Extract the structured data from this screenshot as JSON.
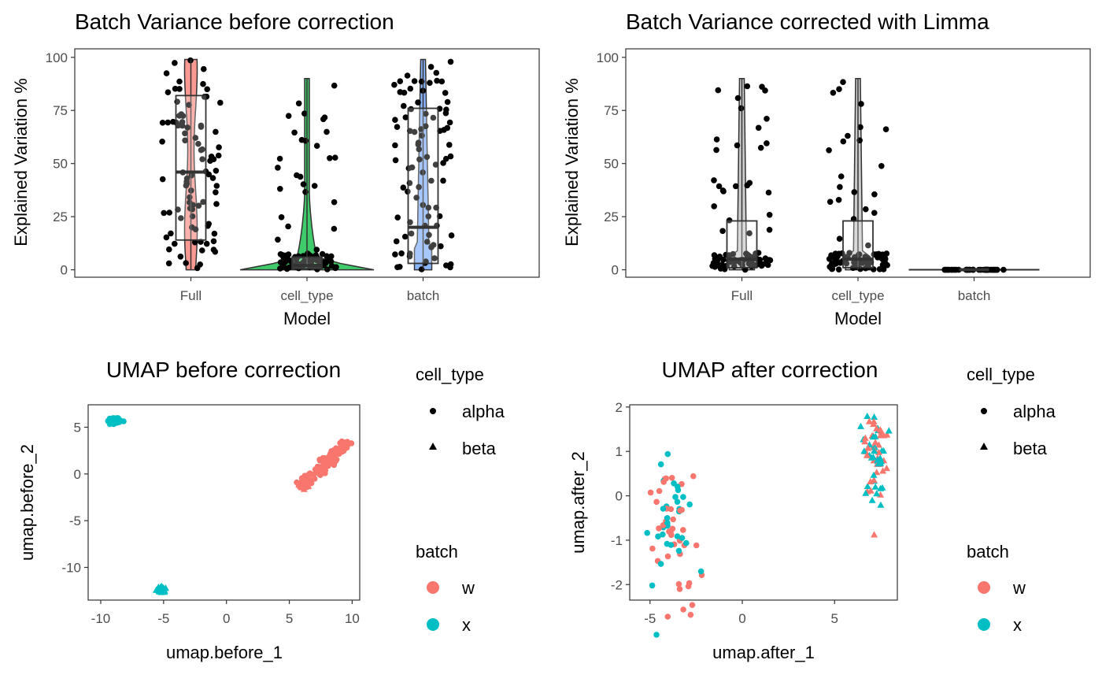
{
  "chart_data": [
    {
      "type": "violin-box-jitter",
      "title": "Batch Variance before correction",
      "xlabel": "Model",
      "ylabel": "Explained Variation %",
      "categories": [
        "Full",
        "cell_type",
        "batch"
      ],
      "ylim": [
        -3.5,
        104
      ],
      "yticks": [
        0,
        25,
        50,
        75,
        100
      ],
      "colors": [
        "#f8766d",
        "#00ba38",
        "#619cff"
      ],
      "box": [
        {
          "q1": 14,
          "median": 46,
          "q3": 82,
          "whisker_low": 0,
          "whisker_high": 99
        },
        {
          "q1": 0.5,
          "median": 2,
          "q3": 6,
          "whisker_low": 0,
          "whisker_high": 90
        },
        {
          "q1": 3,
          "median": 20,
          "q3": 76,
          "whisker_low": 0,
          "whisker_high": 99
        }
      ]
    },
    {
      "type": "violin-box-jitter",
      "title": "Batch Variance corrected with Limma",
      "xlabel": "Model",
      "ylabel": "Explained Variation %",
      "categories": [
        "Full",
        "cell_type",
        "batch"
      ],
      "ylim": [
        -3.5,
        104
      ],
      "yticks": [
        0,
        25,
        50,
        75,
        100
      ],
      "box": [
        {
          "q1": 1,
          "median": 5,
          "q3": 23,
          "whisker_low": 0,
          "whisker_high": 90
        },
        {
          "q1": 1,
          "median": 5,
          "q3": 23,
          "whisker_low": 0,
          "whisker_high": 90
        },
        {
          "q1": 0,
          "median": 0,
          "q3": 0,
          "whisker_low": 0,
          "whisker_high": 0
        }
      ]
    },
    {
      "type": "scatter",
      "title": "UMAP before correction",
      "xlabel": "umap.before_1",
      "ylabel": "umap.before_2",
      "xlim": [
        -11,
        10.6
      ],
      "ylim": [
        -13.5,
        7.4
      ],
      "xticks": [
        -10,
        -5,
        0,
        5,
        10
      ],
      "yticks": [
        -10,
        -5,
        0,
        5
      ],
      "clusters": [
        {
          "batch": "x",
          "cell_type": "alpha",
          "center": [
            -9.0,
            5.7
          ],
          "spread": [
            0.5,
            0.35
          ]
        },
        {
          "batch": "x",
          "cell_type": "beta",
          "center": [
            -5.2,
            -12.3
          ],
          "spread": [
            0.3,
            0.25
          ]
        },
        {
          "batch": "w",
          "cell_type": "alpha",
          "line_from": [
            6.0,
            -1.2
          ],
          "line_to": [
            9.5,
            3.4
          ]
        },
        {
          "batch": "w",
          "cell_type": "beta",
          "center": [
            6.2,
            -1.2
          ],
          "spread": [
            0.3,
            0.3
          ]
        }
      ]
    },
    {
      "type": "scatter",
      "title": "UMAP after correction",
      "xlabel": "umap.after_1",
      "ylabel": "umap.after_2",
      "xlim": [
        -6.1,
        8.4
      ],
      "ylim": [
        -2.35,
        2.05
      ],
      "xticks": [
        -5,
        0,
        5
      ],
      "yticks": [
        -2,
        -1,
        0,
        1,
        2
      ],
      "clusters": [
        {
          "batch": "mixed",
          "cell_type": "alpha",
          "center": [
            -3.8,
            -0.6
          ],
          "spread": [
            1.5,
            1.5
          ]
        },
        {
          "batch": "mixed",
          "cell_type": "beta",
          "center": [
            7.2,
            0.9
          ],
          "spread": [
            0.7,
            1.1
          ]
        }
      ]
    }
  ],
  "legend": {
    "shape_title": "cell_type",
    "shape_items": [
      "alpha",
      "beta"
    ],
    "color_title": "batch",
    "color_items": [
      "w",
      "x"
    ],
    "batch_colors": {
      "w": "#f8766d",
      "x": "#00bfc4"
    }
  }
}
